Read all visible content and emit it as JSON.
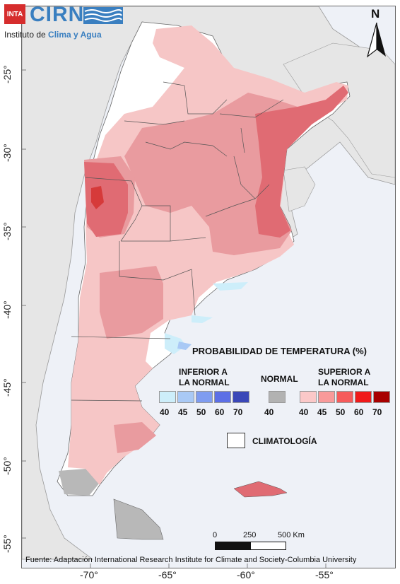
{
  "header": {
    "logo_inta": "INTA",
    "logo_cirn": "CIRN",
    "institute_prefix": "Instituto de ",
    "institute_highlight": "Clima y Agua"
  },
  "north_arrow": {
    "label": "N"
  },
  "axes": {
    "y_ticks": [
      "-25°",
      "-30°",
      "-35°",
      "-40°",
      "-45°",
      "-50°",
      "-55°"
    ],
    "x_ticks": [
      "-70°",
      "-65°",
      "-60°",
      "-55°"
    ]
  },
  "legend": {
    "title": "PROBABILIDAD DE TEMPERATURA (%)",
    "below": {
      "label": "INFERIOR A LA NORMAL",
      "line1": "INFERIOR A",
      "line2": "LA NORMAL",
      "values": [
        "40",
        "45",
        "50",
        "60",
        "70"
      ],
      "colors": [
        "#cdeefa",
        "#a9c9f5",
        "#7f9cf0",
        "#5c6fe6",
        "#3a47b8"
      ]
    },
    "normal": {
      "label": "NORMAL",
      "values": [
        "40"
      ],
      "colors": [
        "#b2b2b2"
      ]
    },
    "above": {
      "label": "SUPERIOR A LA NORMAL",
      "line1": "SUPERIOR A",
      "line2": "LA NORMAL",
      "values": [
        "40",
        "45",
        "50",
        "60",
        "70"
      ],
      "colors": [
        "#fbc8c8",
        "#f99a9a",
        "#f65b5b",
        "#f01a1a",
        "#a80000"
      ]
    },
    "climatology": "CLIMATOLOGÍA"
  },
  "scale_bar": {
    "labels": [
      "0",
      "250",
      "500 Km"
    ]
  },
  "source": "Fuente: Adaptación International Research Institute for Climate and Society-Columbia University",
  "colors": {
    "ocean": "#eef1f7",
    "neighbor_land": "#e6e6e6",
    "light_red": "#f6c6c6",
    "mid_red": "#e99b9f",
    "strong_red": "#e06b73",
    "dark_red": "#d63a3a",
    "light_blue": "#cdeefa",
    "mid_blue": "#a9c9f5",
    "grey": "#b2b2b2"
  }
}
